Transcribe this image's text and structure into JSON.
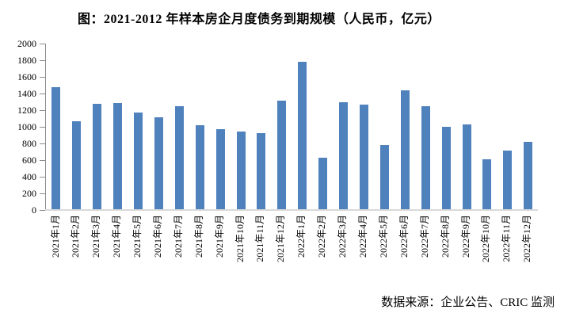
{
  "title": "图：2021-2012 年样本房企月度债务到期规模（人民币，亿元）",
  "source_note": "数据来源：企业公告、CRIC 监测",
  "colors": {
    "bar": "#4F81BD",
    "axis_line": "#8c8c8c",
    "baseline": "#d9d9d9",
    "text": "#000000",
    "background": "#ffffff"
  },
  "chart_data": {
    "type": "bar",
    "title": "图：2021-2012 年样本房企月度债务到期规模（人民币，亿元）",
    "xlabel": "",
    "ylabel": "",
    "ylim": [
      0,
      2000
    ],
    "ytick_step": 200,
    "yticks": [
      0,
      200,
      400,
      600,
      800,
      1000,
      1200,
      1400,
      1600,
      1800,
      2000
    ],
    "grid": false,
    "legend_position": "none",
    "bar_color": "#4F81BD",
    "categories": [
      "2021年1月",
      "2021年2月",
      "2021年3月",
      "2021年4月",
      "2021年5月",
      "2021年6月",
      "2021年7月",
      "2021年8月",
      "2021年9月",
      "2021年10月",
      "2021年11月",
      "2021年12月",
      "2022年1月",
      "2022年2月",
      "2022年3月",
      "2022年4月",
      "2022年5月",
      "2022年6月",
      "2022年7月",
      "2022年8月",
      "2022年9月",
      "2022年10月",
      "2022年11月",
      "2022年12月"
    ],
    "values": [
      1480,
      1070,
      1280,
      1290,
      1170,
      1115,
      1250,
      1015,
      975,
      945,
      920,
      1310,
      1785,
      625,
      1295,
      1270,
      785,
      1435,
      1245,
      1000,
      1030,
      610,
      715,
      815
    ],
    "source_note": "数据来源：企业公告、CRIC 监测"
  }
}
